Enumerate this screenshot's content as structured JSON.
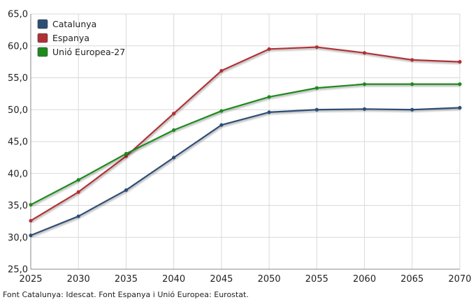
{
  "chart_data": {
    "type": "line",
    "title": "",
    "xlabel": "",
    "ylabel": "",
    "x": [
      2025,
      2030,
      2035,
      2040,
      2045,
      2050,
      2055,
      2060,
      2065,
      2070
    ],
    "x_tick_labels": [
      "2025",
      "2030",
      "2035",
      "2040",
      "2045",
      "2050",
      "2055",
      "2060",
      "2065",
      "2070"
    ],
    "y_tick_values": [
      25,
      30,
      35,
      40,
      45,
      50,
      55,
      60,
      65
    ],
    "y_tick_labels": [
      "25,0",
      "30,0",
      "35,0",
      "40,0",
      "45,0",
      "50,0",
      "55,0",
      "60,0",
      "65,0"
    ],
    "ylim": [
      25,
      65
    ],
    "xlim": [
      2025,
      2070
    ],
    "grid": true,
    "legend_position": "top-left",
    "series": [
      {
        "name": "Catalunya",
        "color": "#2d4e74",
        "values": [
          30.3,
          33.3,
          37.4,
          42.5,
          47.6,
          49.6,
          50.0,
          50.1,
          50.0,
          50.3
        ]
      },
      {
        "name": "Espanya",
        "color": "#b03035",
        "values": [
          32.6,
          37.1,
          42.7,
          49.4,
          56.1,
          59.5,
          59.8,
          58.9,
          57.8,
          57.5
        ]
      },
      {
        "name": "Unió Europea-27",
        "color": "#1e8a1e",
        "values": [
          35.1,
          39.0,
          43.1,
          46.8,
          49.8,
          52.0,
          53.4,
          54.0,
          54.0,
          54.0
        ]
      }
    ]
  },
  "source_note": "Font Catalunya: Idescat. Font Espanya i Unió Europea: Eurostat."
}
